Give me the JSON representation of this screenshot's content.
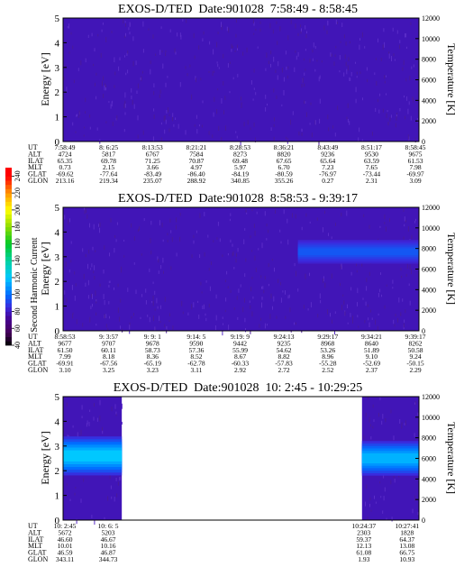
{
  "colorbar": {
    "label": "Second Harmonic Current",
    "ticks": [
      "40",
      "60",
      "80",
      "100",
      "120",
      "140",
      "160",
      "180",
      "200",
      "220",
      "240"
    ]
  },
  "chart_data": [
    {
      "type": "heatmap",
      "title": "EXOS-D/TED  Date:901028  7:58:49 - 8:58:45",
      "ylabel": "Energy [eV]",
      "y2label": "Temperature [K]",
      "ylim": [
        0,
        5
      ],
      "y2lim": [
        0,
        12000
      ],
      "yticks": [
        "0",
        "1",
        "2",
        "3",
        "4",
        "5"
      ],
      "y2ticks": [
        "0",
        "2000",
        "4000",
        "6000",
        "8000",
        "10000",
        "12000"
      ],
      "gaps": [],
      "bands": [],
      "table": {
        "row_labels": [
          "UT",
          "ALT",
          "ILAT",
          "MLT",
          "GLAT",
          "GLON"
        ],
        "columns": [
          [
            "7:58:49",
            "4724",
            "65.35",
            "0.73",
            "-69.62",
            "213.16"
          ],
          [
            "8: 6:25",
            "5817",
            "69.78",
            "2.15",
            "-77.64",
            "219.34"
          ],
          [
            "8:13:53",
            "6767",
            "71.25",
            "3.66",
            "-83.49",
            "235.07"
          ],
          [
            "8:21:21",
            "7584",
            "70.87",
            "4.97",
            "-86.40",
            "288.92"
          ],
          [
            "8:28:53",
            "8273",
            "69.48",
            "5.97",
            "-84.19",
            "340.85"
          ],
          [
            "8:36:21",
            "8820",
            "67.65",
            "6.70",
            "-80.59",
            "355.26"
          ],
          [
            "8:43:49",
            "9236",
            "65.64",
            "7.23",
            "-76.97",
            "0.27"
          ],
          [
            "8:51:17",
            "9530",
            "63.59",
            "7.65",
            "-73.44",
            "2.31"
          ],
          [
            "8:58:45",
            "9675",
            "61.53",
            "7.98",
            "-69.97",
            "3.09"
          ]
        ]
      }
    },
    {
      "type": "heatmap",
      "title": "EXOS-D/TED  Date:901028  8:58:53 - 9:39:17",
      "ylabel": "Energy [eV]",
      "y2label": "Temperature [K]",
      "ylim": [
        0,
        5
      ],
      "y2lim": [
        0,
        12000
      ],
      "yticks": [
        "0",
        "1",
        "2",
        "3",
        "4",
        "5"
      ],
      "y2ticks": [
        "0",
        "2000",
        "4000",
        "6000",
        "8000",
        "10000",
        "12000"
      ],
      "gaps": [],
      "bands": [
        {
          "x_start": 0.66,
          "x_end": 1.0,
          "y_center": 3.2,
          "y_half": 0.55,
          "level": 95
        }
      ],
      "table": {
        "row_labels": [
          "UT",
          "ALT",
          "ILAT",
          "MLT",
          "GLAT",
          "GLON"
        ],
        "columns": [
          [
            "8:58:53",
            "9677",
            "61.50",
            "7.99",
            "-69.91",
            "3.10"
          ],
          [
            "9: 3:57",
            "9707",
            "60.11",
            "8.18",
            "-67.56",
            "3.25"
          ],
          [
            "9: 9: 1",
            "9678",
            "58.73",
            "8.36",
            "-65.19",
            "3.23"
          ],
          [
            "9:14: 5",
            "9590",
            "57.36",
            "8.52",
            "-62.78",
            "3.11"
          ],
          [
            "9:19: 9",
            "9442",
            "55.99",
            "8.67",
            "-60.33",
            "2.92"
          ],
          [
            "9:24:13",
            "9235",
            "54.62",
            "8.82",
            "-57.83",
            "2.72"
          ],
          [
            "9:29:17",
            "8968",
            "53.26",
            "8.96",
            "-55.28",
            "2.52"
          ],
          [
            "9:34:21",
            "8640",
            "51.89",
            "9.10",
            "-52.69",
            "2.37"
          ],
          [
            "9:39:17",
            "8262",
            "50.58",
            "9.24",
            "-50.15",
            "2.29"
          ]
        ]
      }
    },
    {
      "type": "heatmap",
      "title": "EXOS-D/TED  Date:901028  10: 2:45 - 10:29:25",
      "ylabel": "Energy [eV]",
      "y2label": "Temperature [K]",
      "ylim": [
        0,
        5
      ],
      "y2lim": [
        0,
        12000
      ],
      "yticks": [
        "0",
        "1",
        "2",
        "3",
        "4",
        "5"
      ],
      "y2ticks": [
        "0",
        "2000",
        "4000",
        "6000",
        "8000",
        "10000",
        "12000"
      ],
      "gaps": [
        [
          0.165,
          0.84
        ]
      ],
      "bands": [
        {
          "x_start": 0.0,
          "x_end": 0.165,
          "y_center": 2.6,
          "y_half": 0.9,
          "level": 120
        },
        {
          "x_start": 0.84,
          "x_end": 1.0,
          "y_center": 2.5,
          "y_half": 0.8,
          "level": 115
        }
      ],
      "table": {
        "row_labels": [
          "UT",
          "ALT",
          "ILAT",
          "MLT",
          "GLAT",
          "GLON"
        ],
        "columns": [
          [
            "10: 2:45",
            "5672",
            "46.60",
            "10.01",
            "46.59",
            "343.11"
          ],
          [
            "10: 6: 5",
            "5203",
            "46.67",
            "10.16",
            "46.87",
            "344.73"
          ],
          [
            "10:24:37",
            "2303",
            "59.37",
            "12.13",
            "61.08",
            "1.93"
          ],
          [
            "10:27:41",
            "1828",
            "64.37",
            "13.08",
            "66.75",
            "10.93"
          ]
        ]
      }
    }
  ]
}
